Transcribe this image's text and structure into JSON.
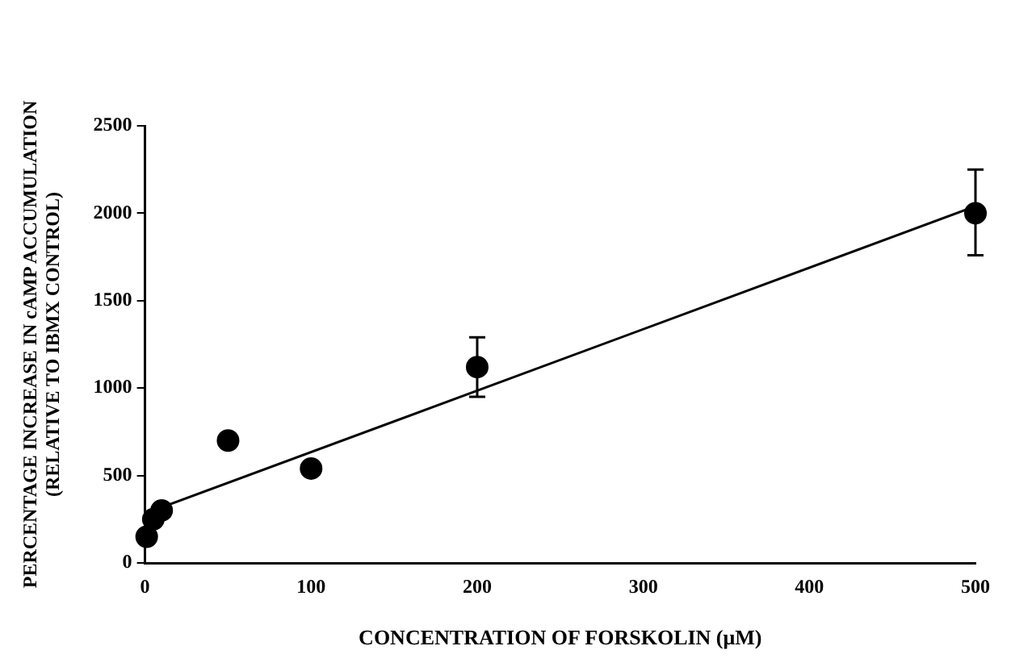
{
  "chart_data": {
    "type": "scatter",
    "xlabel": "CONCENTRATION OF FORSKOLIN (μM)",
    "ylabel": "PERCENTAGE INCREASE IN cAMP ACCUMULATION\n(RELATIVE TO IBMX CONTROL)",
    "xlim": [
      0,
      500
    ],
    "xticks": [
      0,
      100,
      200,
      300,
      400,
      500
    ],
    "ylim": [
      0,
      2500
    ],
    "yticks": [
      0,
      500,
      1000,
      1500,
      2000,
      2500
    ],
    "grid": false,
    "legend": false,
    "series": [
      {
        "color": "#000000",
        "marker": "circle",
        "x": [
          1,
          5,
          10,
          50,
          100,
          200,
          500
        ],
        "values": [
          150,
          250,
          300,
          700,
          540,
          1120,
          2000
        ],
        "errors": [
          null,
          null,
          null,
          null,
          null,
          [
            950,
            1290
          ],
          [
            1760,
            2250
          ]
        ]
      },
      {
        "type": "line",
        "color": "#000000",
        "marker": "none",
        "line_style": "solid",
        "x": [
          5,
          500
        ],
        "values": [
          300,
          2040
        ]
      }
    ]
  }
}
